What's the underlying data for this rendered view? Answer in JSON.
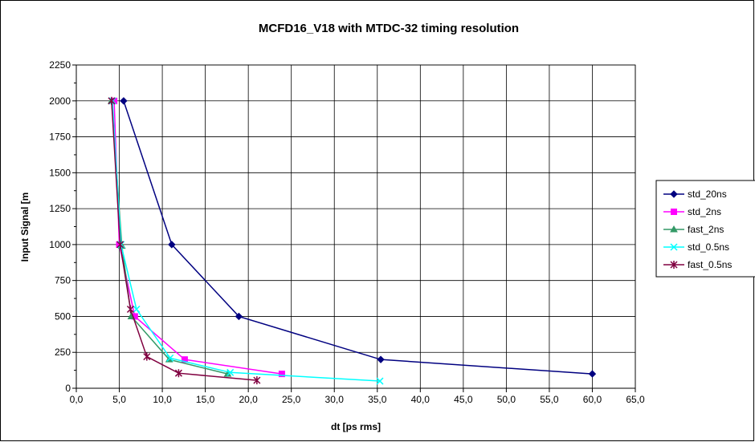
{
  "chart_data": {
    "type": "line",
    "title": "MCFD16_V18 with MTDC-32 timing resolution",
    "xlabel": "dt [ps rms]",
    "ylabel": "Input Signal [m",
    "xlim": [
      0,
      65
    ],
    "ylim": [
      0,
      2250
    ],
    "x_ticks": [
      "0,0",
      "5,0",
      "10,0",
      "15,0",
      "20,0",
      "25,0",
      "30,0",
      "35,0",
      "40,0",
      "45,0",
      "50,0",
      "55,0",
      "60,0",
      "65,0"
    ],
    "y_ticks": [
      "0",
      "250",
      "500",
      "750",
      "1000",
      "1250",
      "1500",
      "1750",
      "2000",
      "2250"
    ],
    "grid": true,
    "legend_position": "right",
    "series": [
      {
        "name": "std_20ns",
        "color": "#000080",
        "marker": "diamond",
        "points": [
          [
            5.5,
            2000
          ],
          [
            11.1,
            1000
          ],
          [
            18.9,
            500
          ],
          [
            35.4,
            200
          ],
          [
            60.0,
            100
          ]
        ]
      },
      {
        "name": "std_2ns",
        "color": "#ff00ff",
        "marker": "square",
        "points": [
          [
            4.4,
            2000
          ],
          [
            5.0,
            1000
          ],
          [
            6.8,
            500
          ],
          [
            12.6,
            200
          ],
          [
            23.9,
            100
          ]
        ]
      },
      {
        "name": "fast_2ns",
        "color": "#339966",
        "marker": "triangle",
        "points": [
          [
            4.1,
            2000
          ],
          [
            5.3,
            990
          ],
          [
            6.4,
            500
          ],
          [
            10.8,
            200
          ],
          [
            17.6,
            100
          ]
        ]
      },
      {
        "name": "std_0.5ns",
        "color": "#00ffff",
        "marker": "x",
        "points": [
          [
            4.2,
            2000
          ],
          [
            5.2,
            1000
          ],
          [
            7.0,
            550
          ],
          [
            10.9,
            210
          ],
          [
            17.9,
            110
          ],
          [
            35.3,
            50
          ]
        ]
      },
      {
        "name": "fast_0.5ns",
        "color": "#800040",
        "marker": "star",
        "points": [
          [
            4.1,
            2000
          ],
          [
            5.1,
            1000
          ],
          [
            6.3,
            550
          ],
          [
            8.2,
            220
          ],
          [
            11.9,
            105
          ],
          [
            21.0,
            55
          ]
        ]
      }
    ]
  }
}
